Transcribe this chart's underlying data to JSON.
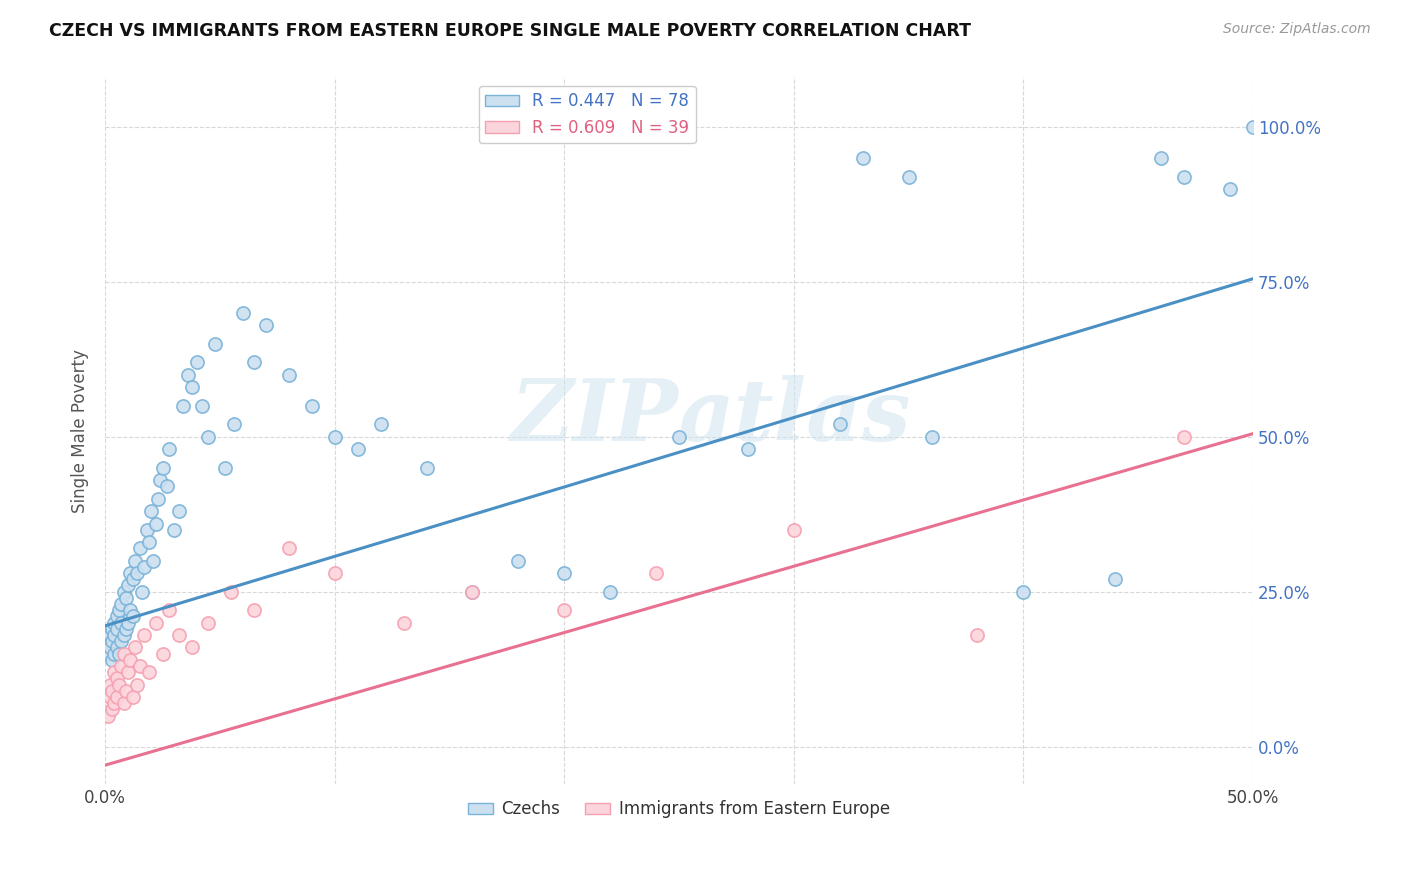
{
  "title": "CZECH VS IMMIGRANTS FROM EASTERN EUROPE SINGLE MALE POVERTY CORRELATION CHART",
  "source": "Source: ZipAtlas.com",
  "ylabel": "Single Male Poverty",
  "ytick_labels": [
    "0.0%",
    "25.0%",
    "50.0%",
    "75.0%",
    "100.0%"
  ],
  "ytick_values": [
    0.0,
    0.25,
    0.5,
    0.75,
    1.0
  ],
  "xmin": 0.0,
  "xmax": 0.5,
  "ymin": -0.06,
  "ymax": 1.08,
  "series_czechs": {
    "color": "#7ab3d9",
    "fill_color": "#cce0f0",
    "R": 0.447,
    "N": 78,
    "label": "Czechs",
    "trend_color": "#4a90c4",
    "trend_x0": 0.0,
    "trend_y0": 0.195,
    "trend_x1": 0.5,
    "trend_y1": 0.755
  },
  "series_immigrants": {
    "color": "#f5a0b0",
    "fill_color": "#fcd5dc",
    "R": 0.609,
    "N": 39,
    "label": "Immigrants from Eastern Europe",
    "trend_color": "#e87090",
    "trend_x0": 0.0,
    "trend_y0": -0.03,
    "trend_x1": 0.5,
    "trend_y1": 0.505
  },
  "watermark": "ZIPatlas",
  "background_color": "#ffffff",
  "grid_color": "#d8d8d8",
  "czech_x": [
    0.001,
    0.002,
    0.002,
    0.003,
    0.003,
    0.003,
    0.004,
    0.004,
    0.004,
    0.005,
    0.005,
    0.005,
    0.006,
    0.006,
    0.007,
    0.007,
    0.007,
    0.008,
    0.008,
    0.009,
    0.009,
    0.01,
    0.01,
    0.011,
    0.011,
    0.012,
    0.012,
    0.013,
    0.014,
    0.015,
    0.016,
    0.017,
    0.018,
    0.019,
    0.02,
    0.021,
    0.022,
    0.023,
    0.024,
    0.025,
    0.027,
    0.028,
    0.03,
    0.032,
    0.034,
    0.036,
    0.038,
    0.04,
    0.042,
    0.045,
    0.048,
    0.052,
    0.056,
    0.06,
    0.065,
    0.07,
    0.08,
    0.09,
    0.1,
    0.11,
    0.12,
    0.14,
    0.16,
    0.18,
    0.2,
    0.22,
    0.25,
    0.28,
    0.32,
    0.36,
    0.4,
    0.44,
    0.46,
    0.47,
    0.49,
    0.5,
    0.33,
    0.35
  ],
  "czech_y": [
    0.15,
    0.16,
    0.18,
    0.14,
    0.17,
    0.19,
    0.15,
    0.18,
    0.2,
    0.16,
    0.19,
    0.21,
    0.15,
    0.22,
    0.17,
    0.2,
    0.23,
    0.18,
    0.25,
    0.19,
    0.24,
    0.2,
    0.26,
    0.22,
    0.28,
    0.21,
    0.27,
    0.3,
    0.28,
    0.32,
    0.25,
    0.29,
    0.35,
    0.33,
    0.38,
    0.3,
    0.36,
    0.4,
    0.43,
    0.45,
    0.42,
    0.48,
    0.35,
    0.38,
    0.55,
    0.6,
    0.58,
    0.62,
    0.55,
    0.5,
    0.65,
    0.45,
    0.52,
    0.7,
    0.62,
    0.68,
    0.6,
    0.55,
    0.5,
    0.48,
    0.52,
    0.45,
    0.25,
    0.3,
    0.28,
    0.25,
    0.5,
    0.48,
    0.52,
    0.5,
    0.25,
    0.27,
    0.95,
    0.92,
    0.9,
    1.0,
    0.95,
    0.92
  ],
  "imm_x": [
    0.001,
    0.002,
    0.002,
    0.003,
    0.003,
    0.004,
    0.004,
    0.005,
    0.005,
    0.006,
    0.007,
    0.008,
    0.008,
    0.009,
    0.01,
    0.011,
    0.012,
    0.013,
    0.014,
    0.015,
    0.017,
    0.019,
    0.022,
    0.025,
    0.028,
    0.032,
    0.038,
    0.045,
    0.055,
    0.065,
    0.08,
    0.1,
    0.13,
    0.16,
    0.2,
    0.24,
    0.3,
    0.38,
    0.47
  ],
  "imm_y": [
    0.05,
    0.08,
    0.1,
    0.06,
    0.09,
    0.07,
    0.12,
    0.08,
    0.11,
    0.1,
    0.13,
    0.07,
    0.15,
    0.09,
    0.12,
    0.14,
    0.08,
    0.16,
    0.1,
    0.13,
    0.18,
    0.12,
    0.2,
    0.15,
    0.22,
    0.18,
    0.16,
    0.2,
    0.25,
    0.22,
    0.32,
    0.28,
    0.2,
    0.25,
    0.22,
    0.28,
    0.35,
    0.18,
    0.5
  ]
}
